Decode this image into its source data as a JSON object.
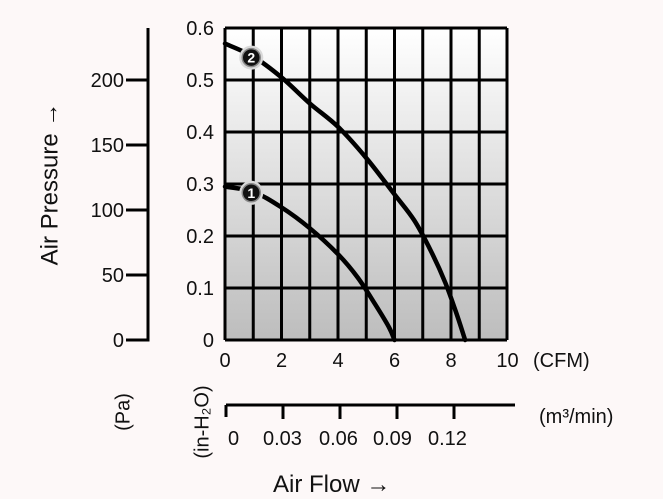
{
  "chart_data": {
    "type": "line",
    "x_unit": "(CFM)",
    "y_unit": "(in-H₂O)",
    "xlim": [
      0,
      10
    ],
    "ylim": [
      0,
      0.6
    ],
    "x_ticks": [
      "0",
      "2",
      "4",
      "6",
      "8",
      "10"
    ],
    "y_ticks": [
      "0",
      "0.1",
      "0.2",
      "0.3",
      "0.4",
      "0.5",
      "0.6"
    ],
    "grid": true,
    "ylabel": "Air Pressure →",
    "xlabel": "Air Flow →",
    "pa_axis": {
      "unit": "(Pa)",
      "ticks": [
        "0",
        "50",
        "100",
        "150",
        "200"
      ],
      "values": [
        0,
        50,
        100,
        150,
        200
      ],
      "max": 240
    },
    "m3_axis": {
      "unit": "(m³/min)",
      "ticks": [
        "0",
        "0.03",
        "0.06",
        "0.09",
        "0.12"
      ],
      "values": [
        0,
        0.03,
        0.06,
        0.09,
        0.12
      ]
    },
    "series": [
      {
        "marker": "1",
        "x": [
          0,
          1,
          2,
          3,
          4,
          4.7,
          5.3,
          5.8,
          6.0
        ],
        "y": [
          0.295,
          0.285,
          0.255,
          0.215,
          0.165,
          0.12,
          0.07,
          0.025,
          0.0
        ]
      },
      {
        "marker": "2",
        "x": [
          0,
          1,
          2,
          3,
          4,
          5,
          6,
          6.7,
          7.3,
          7.8,
          8.2,
          8.5
        ],
        "y": [
          0.57,
          0.545,
          0.505,
          0.455,
          0.41,
          0.35,
          0.28,
          0.23,
          0.17,
          0.11,
          0.05,
          0.0
        ]
      }
    ]
  }
}
